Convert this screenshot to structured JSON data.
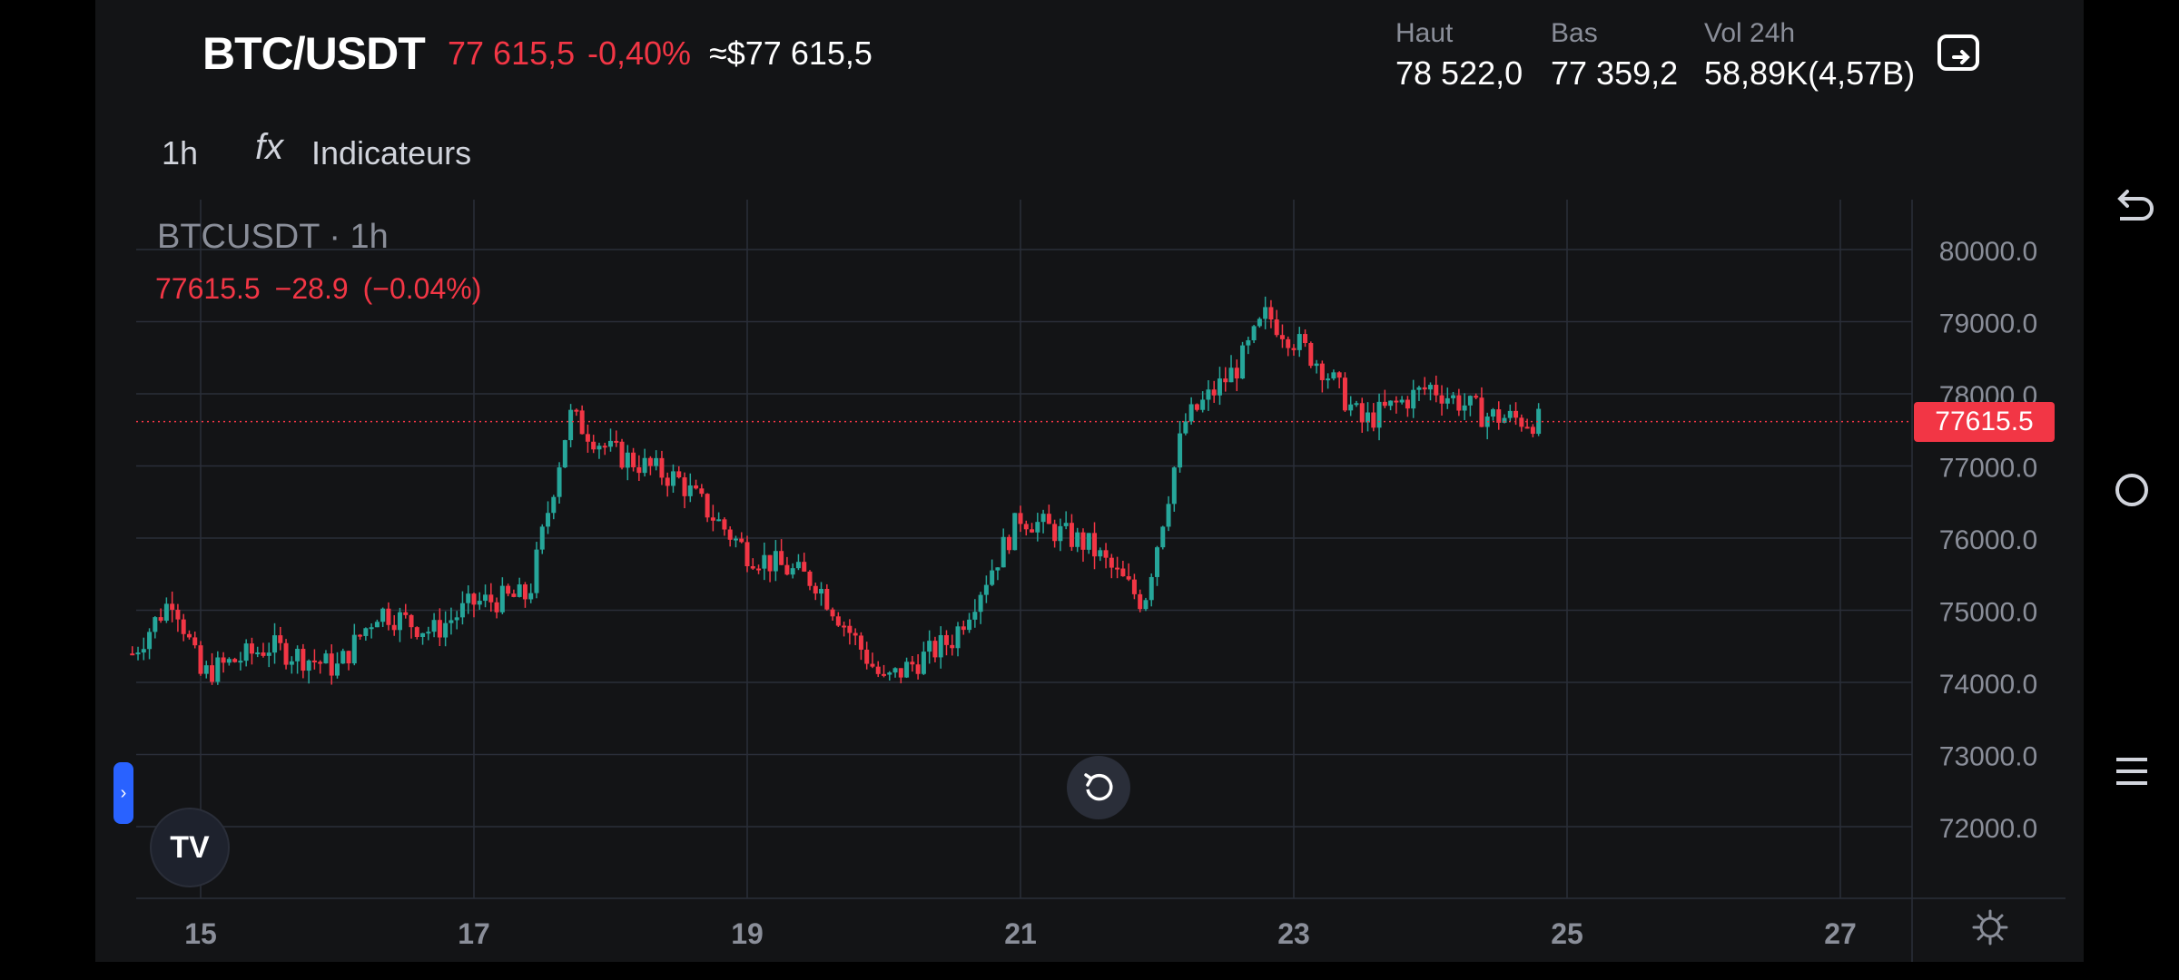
{
  "header": {
    "pair": "BTC/USDT",
    "price": "77 615,5",
    "change": "-0,40%",
    "usd_value": "≈$77 615,5",
    "stats": [
      {
        "label": "Haut",
        "value": "78 522,0"
      },
      {
        "label": "Bas",
        "value": "77 359,2"
      },
      {
        "label": "Vol 24h",
        "value": "58,89K(4,57B)"
      }
    ],
    "screenshot_icon": "screenshot-icon"
  },
  "toolbar": {
    "timeframe": "1h",
    "indicators_icon": "fx",
    "indicators_label": "Indicateurs"
  },
  "chart_legend": {
    "symbol": "BTCUSDT",
    "separator": " · ",
    "interval": "1h",
    "last": "77615.5",
    "change": "−28.9",
    "change_pct": "(−0.04%)"
  },
  "current_price_label": "77615.5",
  "colors": {
    "up": "#26a69a",
    "down": "#f23645",
    "bg": "#131416",
    "grid": "#2a2e39"
  },
  "chart_data": {
    "type": "candlestick",
    "x_ticks": [
      "15",
      "17",
      "19",
      "21",
      "23",
      "25",
      "27"
    ],
    "y_ticks": [
      "80000.0",
      "79000.0",
      "78000.0",
      "77000.0",
      "76000.0",
      "75000.0",
      "74000.0",
      "73000.0",
      "72000.0"
    ],
    "ylim": [
      71000,
      80500
    ],
    "current_price": 77615.5,
    "approx_close_path": [
      [
        "14.5",
        74400
      ],
      [
        "14.8",
        75200
      ],
      [
        "15.0",
        74100
      ],
      [
        "15.5",
        74500
      ],
      [
        "16.0",
        74200
      ],
      [
        "16.3",
        75000
      ],
      [
        "16.7",
        74700
      ],
      [
        "17.0",
        75100
      ],
      [
        "17.4",
        75200
      ],
      [
        "17.7",
        77700
      ],
      [
        "18.0",
        77200
      ],
      [
        "18.5",
        76800
      ],
      [
        "19.0",
        75800
      ],
      [
        "19.5",
        75400
      ],
      [
        "20.0",
        74000
      ],
      [
        "20.5",
        74600
      ],
      [
        "21.0",
        76300
      ],
      [
        "21.5",
        75900
      ],
      [
        "21.9",
        75100
      ],
      [
        "22.2",
        77600
      ],
      [
        "22.6",
        78400
      ],
      [
        "22.8",
        79100
      ],
      [
        "23.2",
        78400
      ],
      [
        "23.5",
        77600
      ],
      [
        "24.0",
        78100
      ],
      [
        "24.4",
        77700
      ],
      [
        "24.8",
        77615
      ]
    ]
  },
  "bottom": {
    "settings_icon": "gear-icon",
    "reset_icon": "reset-icon",
    "logo": "TV"
  },
  "navbar": {
    "icons": [
      "back-icon",
      "home-icon",
      "recents-icon"
    ]
  }
}
